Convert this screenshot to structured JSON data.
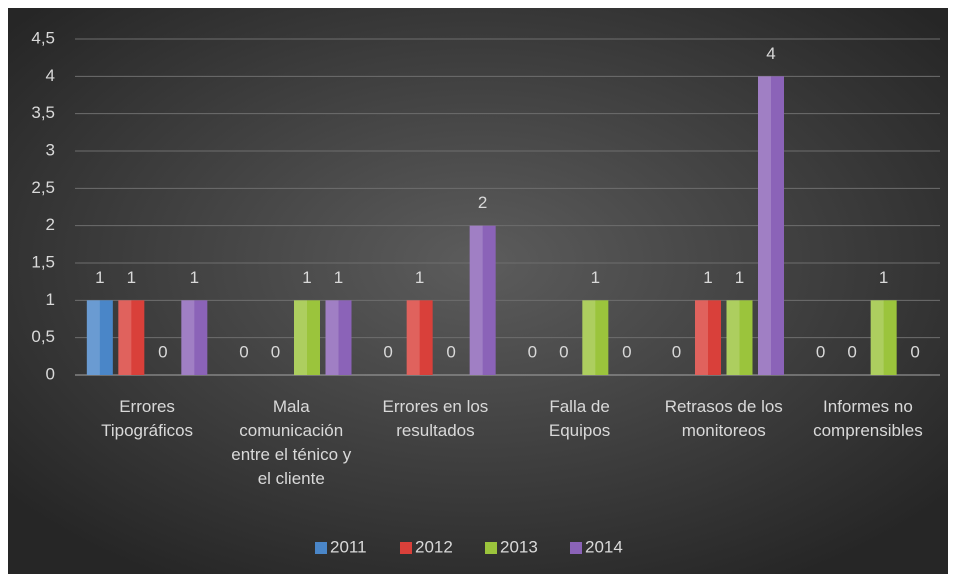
{
  "chart_data": {
    "type": "bar",
    "categories": [
      "Errores Tipográficos",
      "Mala comunicación entre el ténico y el cliente",
      "Errores en los resultados",
      "Falla de Equipos",
      "Retrasos de los monitoreos",
      "Informes no comprensibles"
    ],
    "series": [
      {
        "name": "2011",
        "color": "#4a86c8",
        "values": [
          1,
          0,
          0,
          0,
          0,
          0
        ]
      },
      {
        "name": "2012",
        "color": "#d9403a",
        "values": [
          1,
          0,
          1,
          0,
          1,
          0
        ]
      },
      {
        "name": "2013",
        "color": "#9bc43c",
        "values": [
          0,
          1,
          0,
          1,
          1,
          1
        ]
      },
      {
        "name": "2014",
        "color": "#8b63b8",
        "values": [
          1,
          1,
          2,
          0,
          4,
          0
        ]
      }
    ],
    "ylim": [
      0,
      4.5
    ],
    "yticks": [
      0,
      {
        "value": 0.5,
        "label": "0,5"
      },
      1,
      {
        "value": 1.5,
        "label": "1,5"
      },
      2,
      {
        "value": 2.5,
        "label": "2,5"
      },
      3,
      {
        "value": 3.5,
        "label": "3,5"
      },
      4,
      {
        "value": 4.5,
        "label": "4,5"
      }
    ],
    "grid": true,
    "legend": "bottom"
  }
}
